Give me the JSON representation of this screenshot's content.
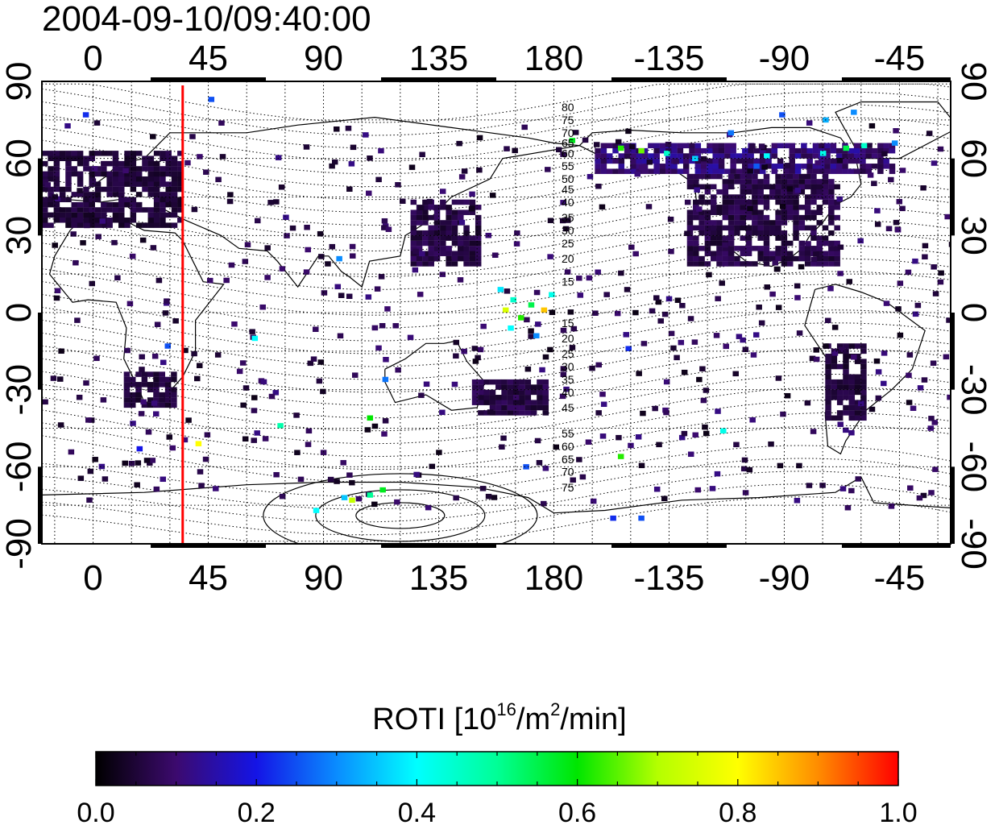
{
  "header": {
    "timestamp": "2004-09-10/09:40:00"
  },
  "chart_data": {
    "type": "heatmap",
    "title": "2004-09-10/09:40:00",
    "x_ticks": [
      "0",
      "45",
      "90",
      "135",
      "180",
      "-135",
      "-90",
      "-45"
    ],
    "x_tick_values": [
      0,
      45,
      90,
      135,
      180,
      225,
      270,
      315
    ],
    "xlim": [
      -20,
      335
    ],
    "y_ticks": [
      "90",
      "60",
      "30",
      "0",
      "-30",
      "-60",
      "-90"
    ],
    "y_tick_values": [
      90,
      60,
      30,
      0,
      -30,
      -60,
      -90
    ],
    "ylim": [
      -90,
      90
    ],
    "grid": true,
    "marker_line": {
      "lon": 35,
      "color": "#ff0000"
    },
    "contour_labels": [
      {
        "text": "80",
        "lon": 183,
        "lat": 80
      },
      {
        "text": "75",
        "lon": 183,
        "lat": 75
      },
      {
        "text": "70",
        "lon": 183,
        "lat": 70
      },
      {
        "text": "65",
        "lon": 183,
        "lat": 66
      },
      {
        "text": "60",
        "lon": 183,
        "lat": 62
      },
      {
        "text": "55",
        "lon": 183,
        "lat": 57
      },
      {
        "text": "50",
        "lon": 183,
        "lat": 52
      },
      {
        "text": "45",
        "lon": 183,
        "lat": 48
      },
      {
        "text": "40",
        "lon": 183,
        "lat": 43
      },
      {
        "text": "35",
        "lon": 183,
        "lat": 37
      },
      {
        "text": "30",
        "lon": 183,
        "lat": 32
      },
      {
        "text": "25",
        "lon": 183,
        "lat": 27
      },
      {
        "text": "20",
        "lon": 183,
        "lat": 21
      },
      {
        "text": "15",
        "lon": 183,
        "lat": 12
      },
      {
        "text": "15",
        "lon": 183,
        "lat": -4
      },
      {
        "text": "20",
        "lon": 183,
        "lat": -10
      },
      {
        "text": "25",
        "lon": 183,
        "lat": -16
      },
      {
        "text": "30",
        "lon": 183,
        "lat": -21
      },
      {
        "text": "35",
        "lon": 183,
        "lat": -26
      },
      {
        "text": "40",
        "lon": 183,
        "lat": -31
      },
      {
        "text": "45",
        "lon": 183,
        "lat": -37
      },
      {
        "text": "55",
        "lon": 183,
        "lat": -47
      },
      {
        "text": "60",
        "lon": 183,
        "lat": -52
      },
      {
        "text": "65",
        "lon": 183,
        "lat": -57
      },
      {
        "text": "70",
        "lon": 183,
        "lat": -62
      },
      {
        "text": "75",
        "lon": 183,
        "lat": -68
      }
    ],
    "dense_regions": [
      {
        "lon_min": -20,
        "lon_max": 35,
        "lat_min": 35,
        "lat_max": 64,
        "value": 0.05
      },
      {
        "lon_min": 124,
        "lon_max": 150,
        "lat_min": 20,
        "lat_max": 46,
        "value": 0.06
      },
      {
        "lon_min": 232,
        "lon_max": 290,
        "lat_min": 20,
        "lat_max": 56,
        "value": 0.06
      },
      {
        "lon_min": 196,
        "lon_max": 312,
        "lat_min": 56,
        "lat_max": 68,
        "value": 0.1
      },
      {
        "lon_min": 12,
        "lon_max": 32,
        "lat_min": -35,
        "lat_max": -22,
        "value": 0.05
      },
      {
        "lon_min": 148,
        "lon_max": 176,
        "lat_min": -38,
        "lat_max": -25,
        "value": 0.06
      },
      {
        "lon_min": 286,
        "lon_max": 300,
        "lat_min": -40,
        "lat_max": -10,
        "value": 0.05
      }
    ],
    "cells": [
      {
        "lon": 175,
        "lat": 2,
        "value": 0.85
      },
      {
        "lon": 170,
        "lat": 4,
        "value": 0.55
      },
      {
        "lon": 163,
        "lat": 6,
        "value": 0.45
      },
      {
        "lon": 158,
        "lat": 10,
        "value": 0.38
      },
      {
        "lon": 166,
        "lat": -1,
        "value": 0.62
      },
      {
        "lon": 160,
        "lat": 2,
        "value": 0.75
      },
      {
        "lon": 178,
        "lat": 8,
        "value": 0.42
      },
      {
        "lon": 162,
        "lat": -5,
        "value": 0.4
      },
      {
        "lon": 172,
        "lat": -8,
        "value": 0.3
      },
      {
        "lon": 100,
        "lat": -72,
        "value": 0.72
      },
      {
        "lon": 107,
        "lat": -70,
        "value": 0.5
      },
      {
        "lon": 112,
        "lat": -68,
        "value": 0.58
      },
      {
        "lon": 97,
        "lat": -71,
        "value": 0.35
      },
      {
        "lon": 86,
        "lat": -76,
        "value": 0.4
      },
      {
        "lon": 186,
        "lat": 68,
        "value": 0.58
      },
      {
        "lon": 205,
        "lat": 65,
        "value": 0.62
      },
      {
        "lon": 213,
        "lat": 64,
        "value": 0.66
      },
      {
        "lon": 223,
        "lat": 63,
        "value": 0.45
      },
      {
        "lon": 234,
        "lat": 61,
        "value": 0.36
      },
      {
        "lon": 262,
        "lat": 62,
        "value": 0.4
      },
      {
        "lon": 284,
        "lat": 63,
        "value": 0.42
      },
      {
        "lon": 293,
        "lat": 65,
        "value": 0.55
      },
      {
        "lon": 300,
        "lat": 66,
        "value": 0.45
      },
      {
        "lon": 296,
        "lat": 79,
        "value": 0.3
      },
      {
        "lon": 268,
        "lat": 78,
        "value": 0.25
      },
      {
        "lon": 285,
        "lat": 76,
        "value": 0.33
      },
      {
        "lon": 248,
        "lat": 71,
        "value": 0.28
      },
      {
        "lon": 40,
        "lat": -50,
        "value": 0.8
      },
      {
        "lon": 245,
        "lat": -45,
        "value": 0.42
      },
      {
        "lon": 205,
        "lat": -55,
        "value": 0.62
      },
      {
        "lon": 72,
        "lat": -43,
        "value": 0.48
      },
      {
        "lon": 107,
        "lat": -40,
        "value": 0.6
      },
      {
        "lon": 62,
        "lat": -9,
        "value": 0.4
      },
      {
        "lon": 95,
        "lat": 22,
        "value": 0.3
      },
      {
        "lon": 28,
        "lat": -12,
        "value": 0.25
      },
      {
        "lon": 113,
        "lat": -25,
        "value": 0.28
      },
      {
        "lon": 208,
        "lat": -13,
        "value": 0.22
      },
      {
        "lon": 168,
        "lat": -59,
        "value": 0.25
      },
      {
        "lon": 17,
        "lat": -52,
        "value": 0.2
      },
      {
        "lon": -4,
        "lat": 78,
        "value": 0.22
      },
      {
        "lon": 202,
        "lat": -79,
        "value": 0.22
      },
      {
        "lon": 213,
        "lat": -79,
        "value": 0.25
      },
      {
        "lon": 45,
        "lat": 84,
        "value": 0.25
      },
      {
        "lon": 312,
        "lat": 67,
        "value": 0.3
      },
      {
        "lon": 258,
        "lat": 58,
        "value": 0.26
      }
    ],
    "sparse_seed": 7,
    "sparse_count": 520
  },
  "colorbar": {
    "title_prefix": "ROTI  [10",
    "title_sup1": "16",
    "title_mid": "/m",
    "title_sup2": "2",
    "title_suffix": "/min]",
    "tick_labels": [
      "0.0",
      "0.2",
      "0.4",
      "0.6",
      "0.8",
      "1.0"
    ],
    "tick_values": [
      0.0,
      0.2,
      0.4,
      0.6,
      0.8,
      1.0
    ],
    "range": [
      0,
      1
    ],
    "stops": [
      {
        "v": 0.0,
        "color": "#000000"
      },
      {
        "v": 0.1,
        "color": "#3c0a6e"
      },
      {
        "v": 0.2,
        "color": "#1414e6"
      },
      {
        "v": 0.3,
        "color": "#0a8cff"
      },
      {
        "v": 0.4,
        "color": "#00ffff"
      },
      {
        "v": 0.5,
        "color": "#00ff96"
      },
      {
        "v": 0.6,
        "color": "#00e600"
      },
      {
        "v": 0.7,
        "color": "#b4ff00"
      },
      {
        "v": 0.8,
        "color": "#ffff00"
      },
      {
        "v": 0.9,
        "color": "#ff8c00"
      },
      {
        "v": 1.0,
        "color": "#ff0000"
      }
    ]
  }
}
